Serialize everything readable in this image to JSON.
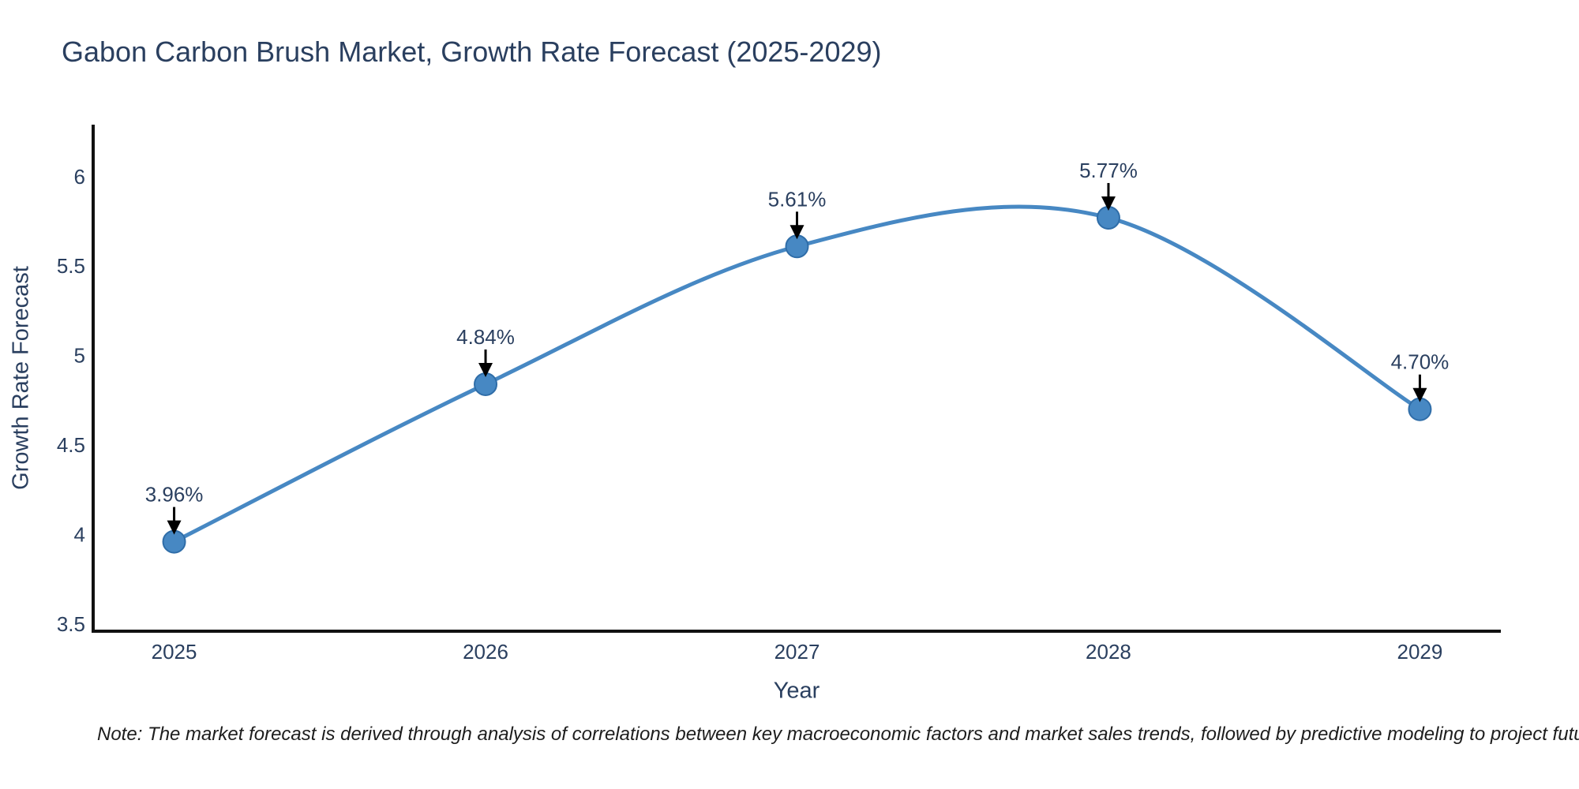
{
  "page": {
    "background": "#ffffff"
  },
  "chart_data": {
    "type": "line",
    "title": "Gabon Carbon Brush Market, Growth Rate Forecast (2025-2029)",
    "xlabel": "Year",
    "ylabel": "Growth Rate Forecast",
    "x": [
      2025,
      2026,
      2027,
      2028,
      2029
    ],
    "y": [
      3.96,
      4.84,
      5.61,
      5.77,
      4.7
    ],
    "point_labels": [
      "3.96%",
      "4.84%",
      "5.61%",
      "5.77%",
      "4.70%"
    ],
    "x_tick_labels": [
      "2025",
      "2026",
      "2027",
      "2028",
      "2029"
    ],
    "y_ticks": [
      3.5,
      4,
      4.5,
      5,
      5.5,
      6
    ],
    "y_tick_labels": [
      "3.5",
      "4",
      "4.5",
      "5",
      "5.5",
      "6"
    ],
    "x_range": [
      2024.74,
      2029.26
    ],
    "y_range": [
      3.46,
      6.29
    ],
    "line_shape": "spline",
    "grid": false,
    "legend_position": "none",
    "colors": {
      "line": "#4788c3",
      "marker": "#4788c3",
      "marker_edge": "#2f6da8",
      "axis": "#111111",
      "tick_text": "#2a3f5f",
      "annotation_text": "#2a3f5f",
      "arrow": "#000000"
    }
  },
  "note": {
    "text": "Note: The market forecast is derived through analysis of correlations between key macroeconomic factors and market sales trends, followed by predictive modeling to project future sales"
  }
}
